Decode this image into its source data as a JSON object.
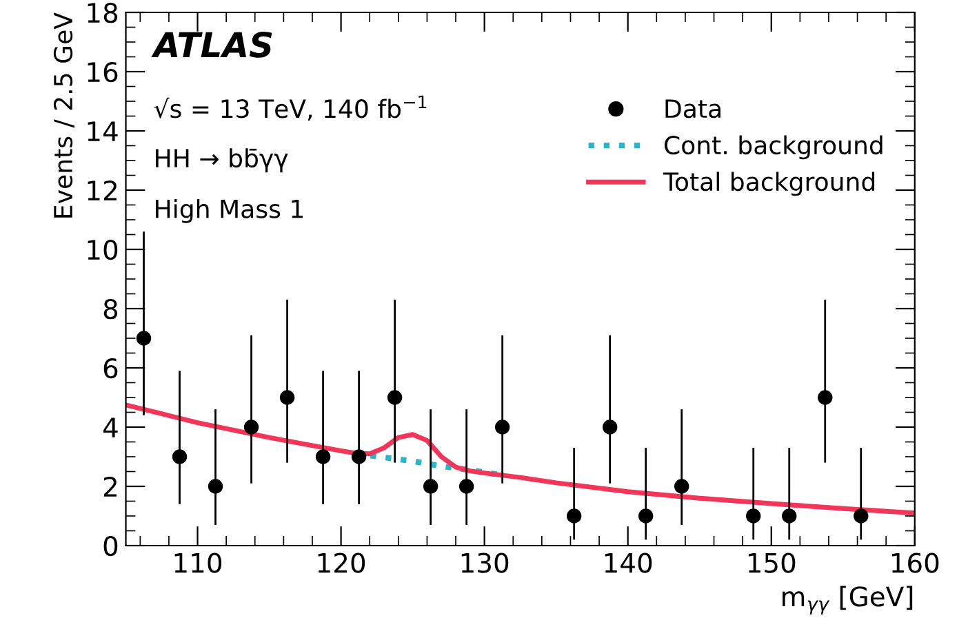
{
  "chart_data": {
    "type": "scatter",
    "xlabel": "m$_{γγ}$ [GeV]",
    "ylabel": "Events / 2.5 GeV",
    "annotations": [
      "ATLAS",
      "√s = 13 TeV, 140 fb$^{−1}$",
      "HH → bb̄γγ",
      "High Mass 1"
    ],
    "xlim": [
      105,
      160
    ],
    "ylim": [
      0,
      18
    ],
    "xticks": [
      110,
      120,
      130,
      140,
      150,
      160
    ],
    "yticks": [
      0,
      2,
      4,
      6,
      8,
      10,
      12,
      14,
      16,
      18
    ],
    "grid": false,
    "legend": "top right",
    "series": [
      {
        "name": "Data",
        "color": "#000000",
        "marker": "circle",
        "x": [
          106.25,
          108.75,
          111.25,
          113.75,
          116.25,
          118.75,
          121.25,
          123.75,
          126.25,
          128.75,
          131.25,
          136.25,
          138.75,
          141.25,
          143.75,
          148.75,
          151.25,
          153.75,
          156.25
        ],
        "values": [
          7,
          3,
          2,
          4,
          5,
          3,
          3,
          5,
          2,
          2,
          4,
          1,
          4,
          1,
          2,
          1,
          1,
          5,
          1
        ],
        "errors": [
          [
            4.4,
            10.6
          ],
          [
            1.4,
            5.9
          ],
          [
            0.7,
            4.6
          ],
          [
            2.1,
            7.1
          ],
          [
            2.8,
            8.3
          ],
          [
            1.4,
            5.9
          ],
          [
            1.4,
            5.9
          ],
          [
            2.8,
            8.3
          ],
          [
            0.7,
            4.6
          ],
          [
            0.7,
            4.6
          ],
          [
            2.1,
            7.1
          ],
          [
            0.2,
            3.3
          ],
          [
            2.1,
            7.1
          ],
          [
            0.2,
            3.3
          ],
          [
            0.7,
            4.6
          ],
          [
            0.2,
            3.3
          ],
          [
            0.2,
            3.3
          ],
          [
            2.8,
            8.3
          ],
          [
            0.2,
            3.3
          ]
        ]
      },
      {
        "name": "Cont. background",
        "type": "line",
        "color": "#2bb5c8",
        "line_style": "dotted",
        "marker": "none",
        "x": [
          121,
          123,
          125,
          127,
          129,
          131
        ],
        "values": [
          3.1,
          2.98,
          2.85,
          2.68,
          2.55,
          2.4
        ]
      },
      {
        "name": "Total background",
        "type": "line",
        "color": "#f2365a",
        "line_style": "solid",
        "marker": "none",
        "x": [
          105,
          107.5,
          110,
          112.5,
          115,
          117.5,
          120,
          121,
          122,
          123,
          124,
          125,
          126,
          127,
          128,
          129,
          130,
          132.5,
          135,
          140,
          145,
          150,
          155,
          160
        ],
        "values": [
          4.75,
          4.45,
          4.15,
          3.9,
          3.65,
          3.42,
          3.2,
          3.12,
          3.1,
          3.3,
          3.65,
          3.75,
          3.55,
          3.0,
          2.65,
          2.52,
          2.45,
          2.3,
          2.12,
          1.82,
          1.6,
          1.42,
          1.25,
          1.1
        ]
      }
    ]
  }
}
